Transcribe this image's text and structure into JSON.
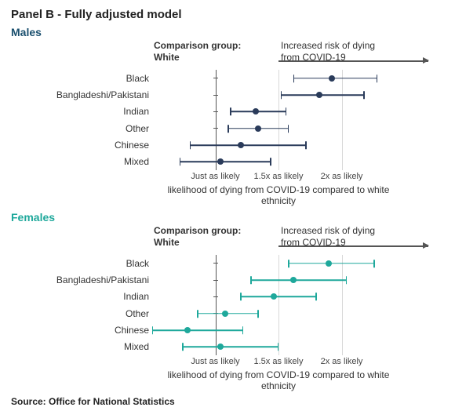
{
  "title": "Panel B - Fully adjusted model",
  "source": "Source: Office for National Statistics",
  "shared": {
    "comparison_label_l1": "Comparison group:",
    "comparison_label_l2": "White",
    "risk_label_l1": "Increased risk of dying",
    "risk_label_l2": "from COVID-19",
    "xlabel": "likelihood of dying from COVID-19 compared to white ethnicity",
    "x_min": 0.5,
    "x_max": 2.5,
    "reference": 1.0,
    "gridlines": [
      1.5,
      2.0
    ],
    "ticks": [
      {
        "value": 1.0,
        "label": "Just as likely"
      },
      {
        "value": 1.5,
        "label": "1.5x as likely"
      },
      {
        "value": 2.0,
        "label": "2x as likely"
      }
    ],
    "categories": [
      "Black",
      "Bangladeshi/Pakistani",
      "Indian",
      "Other",
      "Chinese",
      "Mixed"
    ]
  },
  "panels": [
    {
      "label": "Males",
      "label_color": "#1a4f6e",
      "point_color": "#2a3b5a",
      "series": [
        {
          "lo": 1.62,
          "pt": 1.92,
          "hi": 2.28
        },
        {
          "lo": 1.52,
          "pt": 1.82,
          "hi": 2.18
        },
        {
          "lo": 1.12,
          "pt": 1.32,
          "hi": 1.56
        },
        {
          "lo": 1.1,
          "pt": 1.34,
          "hi": 1.58
        },
        {
          "lo": 0.8,
          "pt": 1.2,
          "hi": 1.72
        },
        {
          "lo": 0.72,
          "pt": 1.04,
          "hi": 1.44
        }
      ]
    },
    {
      "label": "Females",
      "label_color": "#1ea89b",
      "point_color": "#1ea89b",
      "series": [
        {
          "lo": 1.58,
          "pt": 1.9,
          "hi": 2.26
        },
        {
          "lo": 1.28,
          "pt": 1.62,
          "hi": 2.04
        },
        {
          "lo": 1.2,
          "pt": 1.46,
          "hi": 1.8
        },
        {
          "lo": 0.86,
          "pt": 1.08,
          "hi": 1.34
        },
        {
          "lo": 0.5,
          "pt": 0.78,
          "hi": 1.22
        },
        {
          "lo": 0.74,
          "pt": 1.04,
          "hi": 1.5
        }
      ]
    }
  ]
}
